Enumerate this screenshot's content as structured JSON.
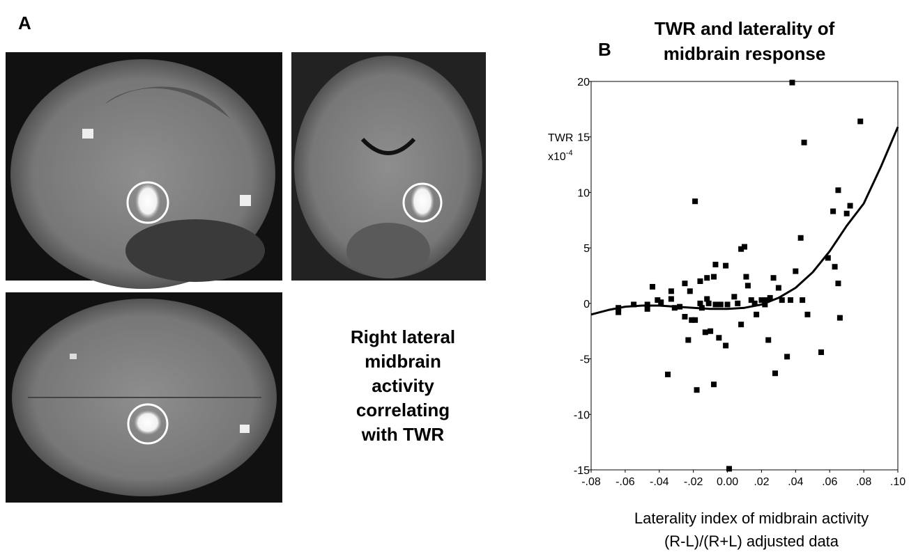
{
  "panel_labels": {
    "a": "A",
    "b": "B"
  },
  "caption": [
    "Right lateral",
    "midbrain",
    "activity",
    "correlating",
    "with TWR"
  ],
  "chart_data": {
    "type": "scatter",
    "title": [
      "TWR and laterality of",
      "midbrain response"
    ],
    "ylabel": {
      "text": "TWR",
      "scale": "x10",
      "exponent": "-4"
    },
    "xlabel": [
      "Laterality index of midbrain activity",
      "(R-L)/(R+L) adjusted data"
    ],
    "color": "#000000",
    "xlim": [
      -0.08,
      0.1
    ],
    "xticks": [
      {
        "value": -0.08,
        "label": "-.08"
      },
      {
        "value": -0.06,
        "label": "-.06"
      },
      {
        "value": -0.04,
        "label": "-.04"
      },
      {
        "value": -0.02,
        "label": "-.02"
      },
      {
        "value": 0,
        "label": "0.00"
      },
      {
        "value": 0.02,
        "label": ".02"
      },
      {
        "value": 0.04,
        "label": ".04"
      },
      {
        "value": 0.06,
        "label": ".06"
      },
      {
        "value": 0.08,
        "label": ".08"
      },
      {
        "value": 0.1,
        "label": ".10"
      }
    ],
    "ylim": [
      -15,
      20
    ],
    "yticks": [
      20,
      15,
      10,
      5,
      0,
      -5,
      -10,
      -15
    ],
    "x": [
      -0.064,
      -0.064,
      -0.055,
      -0.047,
      -0.047,
      -0.044,
      -0.041,
      -0.039,
      -0.035,
      -0.033,
      -0.033,
      -0.031,
      -0.028,
      -0.025,
      -0.025,
      -0.023,
      -0.022,
      -0.021,
      -0.019,
      -0.019,
      -0.018,
      -0.016,
      -0.016,
      -0.015,
      -0.013,
      -0.012,
      -0.012,
      -0.011,
      -0.01,
      -0.008,
      -0.008,
      -0.007,
      -0.007,
      -0.005,
      -0.004,
      -0.001,
      -0.001,
      0.0,
      0.001,
      0.004,
      0.006,
      0.008,
      0.008,
      0.01,
      0.011,
      0.012,
      0.014,
      0.016,
      0.017,
      0.02,
      0.022,
      0.023,
      0.024,
      0.025,
      0.027,
      0.028,
      0.03,
      0.032,
      0.035,
      0.037,
      0.038,
      0.04,
      0.043,
      0.044,
      0.045,
      0.047,
      0.055,
      0.059,
      0.062,
      0.063,
      0.065,
      0.066,
      0.065,
      0.07,
      0.072,
      0.078
    ],
    "values": [
      -0.4,
      -0.8,
      -0.1,
      -0.1,
      -0.5,
      1.5,
      0.3,
      0.1,
      -6.4,
      1.1,
      0.4,
      -0.4,
      -0.3,
      1.8,
      -1.2,
      -3.3,
      1.1,
      -1.5,
      9.2,
      -1.5,
      -7.8,
      2.0,
      0.0,
      -0.4,
      -2.6,
      2.3,
      0.4,
      0.0,
      -2.5,
      2.4,
      -7.3,
      3.5,
      -0.1,
      -3.1,
      -0.1,
      3.4,
      -3.8,
      -0.1,
      -14.9,
      0.6,
      0.0,
      -1.9,
      4.9,
      5.1,
      2.4,
      1.6,
      0.3,
      0.0,
      -1.0,
      0.3,
      -0.1,
      0.3,
      -3.3,
      0.5,
      2.3,
      -6.3,
      1.4,
      0.3,
      -4.8,
      0.3,
      19.9,
      2.9,
      5.9,
      0.3,
      14.5,
      -1.0,
      -4.4,
      4.1,
      8.3,
      3.3,
      1.8,
      -1.3,
      10.2,
      8.1,
      8.8,
      16.4
    ],
    "fit": {
      "x": [
        -0.08,
        -0.07,
        -0.06,
        -0.05,
        -0.04,
        -0.03,
        -0.02,
        -0.01,
        0.0,
        0.01,
        0.02,
        0.03,
        0.04,
        0.05,
        0.06,
        0.07,
        0.08,
        0.09,
        0.1
      ],
      "values": [
        -1.0,
        -0.6,
        -0.3,
        -0.2,
        -0.2,
        -0.3,
        -0.4,
        -0.5,
        -0.5,
        -0.4,
        -0.1,
        0.5,
        1.4,
        2.8,
        4.7,
        7.0,
        9.0,
        12.3,
        15.9
      ]
    }
  }
}
